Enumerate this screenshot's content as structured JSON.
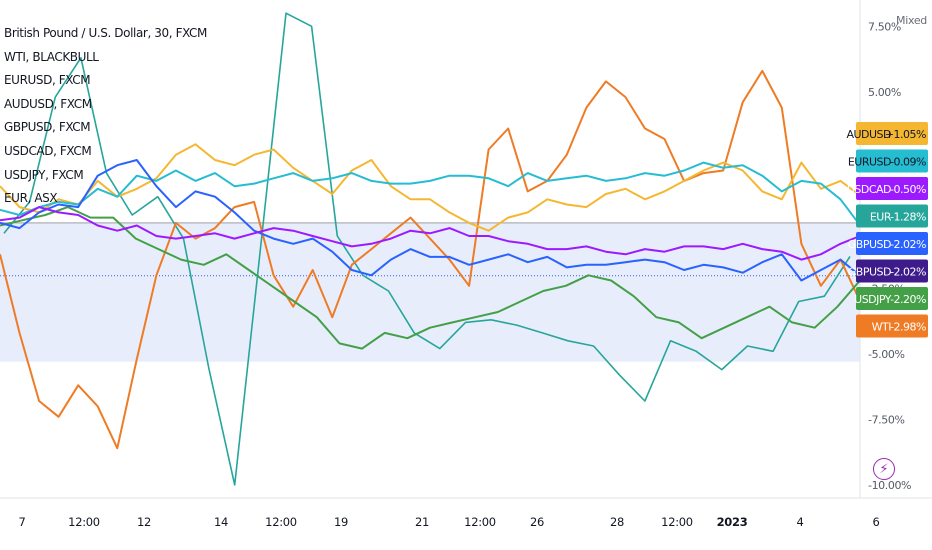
{
  "header": {
    "title": "British Pound / U.S. Dollar, 30, FXCM",
    "legend": [
      "WTI, BLACKBULL",
      "EURUSD, FXCM",
      "AUDUSD, FXCM",
      "GBPUSD, FXCM",
      "USDCAD, FXCM",
      "USDJPY, FXCM",
      "EUR, ASX"
    ]
  },
  "axis": {
    "mode_label": "Mixed"
  },
  "colors": {
    "WTI": "#ef7b25",
    "EUR": "#26a69a",
    "EURUSD": "#26bcd2",
    "AUDUSD": "#f5b731",
    "GBPUSD": "#2962ff",
    "USDCAD": "#9c1aff",
    "USDJPY": "#43a047",
    "base": "#aeb0b6",
    "area": "#e8edfb"
  },
  "chart_data": {
    "type": "line",
    "x_ticks": [
      "7",
      "12:00",
      "12",
      "14",
      "12:00",
      "19",
      "21",
      "12:00",
      "26",
      "28",
      "12:00",
      "2023",
      "4",
      "6"
    ],
    "y_ticks": [
      "7.50%",
      "5.00%",
      "2.50%",
      "0.00%",
      "-2.50%",
      "-5.00%",
      "-7.50%",
      "-10.00%"
    ],
    "ylim": [
      -10.5,
      8.2
    ],
    "baseline_label": "GBPUSD",
    "baseline_value": "-2.02%",
    "series": [
      {
        "name": "AUDUSD",
        "last_label": "AUDUSD",
        "last_value": "+1.05%",
        "values": [
          1.4,
          0.6,
          0.4,
          0.9,
          0.7,
          1.6,
          1.0,
          1.3,
          1.7,
          2.6,
          3.0,
          2.4,
          2.2,
          2.6,
          2.8,
          2.1,
          1.6,
          1.1,
          2.0,
          2.4,
          1.4,
          0.9,
          0.9,
          0.4,
          0.0,
          -0.3,
          0.2,
          0.4,
          0.9,
          0.7,
          0.6,
          1.1,
          1.3,
          0.9,
          1.2,
          1.6,
          2.0,
          2.3,
          2.0,
          1.2,
          0.9,
          2.3,
          1.3,
          1.6,
          1.05
        ]
      },
      {
        "name": "EURUSD",
        "last_label": "EURUSD",
        "last_value": "-0.09%",
        "values": [
          0.5,
          0.3,
          0.6,
          0.8,
          0.7,
          1.3,
          1.0,
          1.8,
          1.6,
          2.0,
          1.6,
          1.9,
          1.4,
          1.5,
          1.7,
          1.9,
          1.6,
          1.7,
          1.9,
          1.6,
          1.5,
          1.5,
          1.6,
          1.8,
          1.8,
          1.7,
          1.4,
          1.9,
          1.6,
          1.7,
          1.8,
          1.6,
          1.7,
          1.9,
          1.8,
          2.0,
          2.3,
          2.1,
          2.2,
          1.8,
          1.2,
          1.6,
          1.5,
          0.9,
          -0.09
        ]
      },
      {
        "name": "USDCAD",
        "last_label": "USDCAD",
        "last_value": "-0.50%",
        "values": [
          0.1,
          0.2,
          0.6,
          0.4,
          0.3,
          -0.1,
          -0.3,
          -0.1,
          -0.5,
          -0.6,
          -0.5,
          -0.4,
          -0.6,
          -0.4,
          -0.2,
          -0.3,
          -0.5,
          -0.7,
          -0.9,
          -0.8,
          -0.6,
          -0.3,
          -0.4,
          -0.2,
          -0.5,
          -0.5,
          -0.7,
          -0.8,
          -1.0,
          -1.0,
          -0.9,
          -1.1,
          -1.2,
          -1.0,
          -1.1,
          -0.9,
          -0.9,
          -1.0,
          -0.8,
          -1.0,
          -1.1,
          -1.4,
          -1.2,
          -0.8,
          -0.5
        ]
      },
      {
        "name": "EUR",
        "last_label": "EUR",
        "last_value": "-1.28%",
        "values": [
          -0.4,
          0.8,
          4.8,
          6.3,
          1.9,
          0.3,
          1.0,
          -0.6,
          -5.6,
          -10.0,
          -1.0,
          8.0,
          7.5,
          -0.5,
          -2.0,
          -2.6,
          -4.2,
          -4.8,
          -3.8,
          -3.7,
          -3.9,
          -4.2,
          -4.5,
          -4.7,
          -5.8,
          -6.8,
          -4.5,
          -4.9,
          -5.6,
          -4.7,
          -4.9,
          -3.0,
          -2.8,
          -1.28
        ]
      },
      {
        "name": "GBPUSD",
        "last_label": "GBPUSD",
        "last_value": "-2.02%",
        "values": [
          0.0,
          -0.2,
          0.4,
          0.7,
          0.6,
          1.8,
          2.2,
          2.4,
          1.4,
          0.6,
          1.2,
          1.0,
          0.4,
          -0.3,
          -0.6,
          -0.8,
          -0.6,
          -1.1,
          -1.8,
          -2.0,
          -1.4,
          -1.0,
          -1.3,
          -1.3,
          -1.6,
          -1.4,
          -1.2,
          -1.5,
          -1.3,
          -1.7,
          -1.6,
          -1.6,
          -1.5,
          -1.4,
          -1.5,
          -1.8,
          -1.6,
          -1.7,
          -1.9,
          -1.5,
          -1.2,
          -2.2,
          -1.8,
          -1.4,
          -2.02
        ]
      },
      {
        "name": "USDJPY",
        "last_label": "USDJPY",
        "last_value": "-2.20%",
        "values": [
          -0.1,
          0.1,
          0.3,
          0.6,
          0.2,
          0.2,
          -0.6,
          -1.0,
          -1.4,
          -1.6,
          -1.2,
          -1.8,
          -2.4,
          -3.0,
          -3.6,
          -4.6,
          -4.8,
          -4.2,
          -4.4,
          -4.0,
          -3.8,
          -3.6,
          -3.4,
          -3.0,
          -2.6,
          -2.4,
          -2.0,
          -2.2,
          -2.8,
          -3.6,
          -3.8,
          -4.4,
          -4.0,
          -3.6,
          -3.2,
          -3.8,
          -4.0,
          -3.2,
          -2.2
        ]
      },
      {
        "name": "WTI",
        "last_label": "WTI",
        "last_value": "-2.98%",
        "values": [
          -1.2,
          -4.2,
          -6.8,
          -7.4,
          -6.2,
          -7.0,
          -8.6,
          -5.2,
          -2.0,
          0.0,
          -0.6,
          -0.2,
          0.6,
          0.8,
          -2.0,
          -3.2,
          -1.8,
          -3.6,
          -1.6,
          -1.0,
          -0.4,
          0.2,
          -0.6,
          -1.4,
          -2.4,
          2.8,
          3.6,
          1.2,
          1.6,
          2.6,
          4.4,
          5.4,
          4.8,
          3.6,
          3.2,
          1.6,
          1.9,
          2.0,
          4.6,
          5.8,
          4.4,
          -0.8,
          -2.4,
          -1.4,
          -2.98
        ]
      }
    ]
  }
}
